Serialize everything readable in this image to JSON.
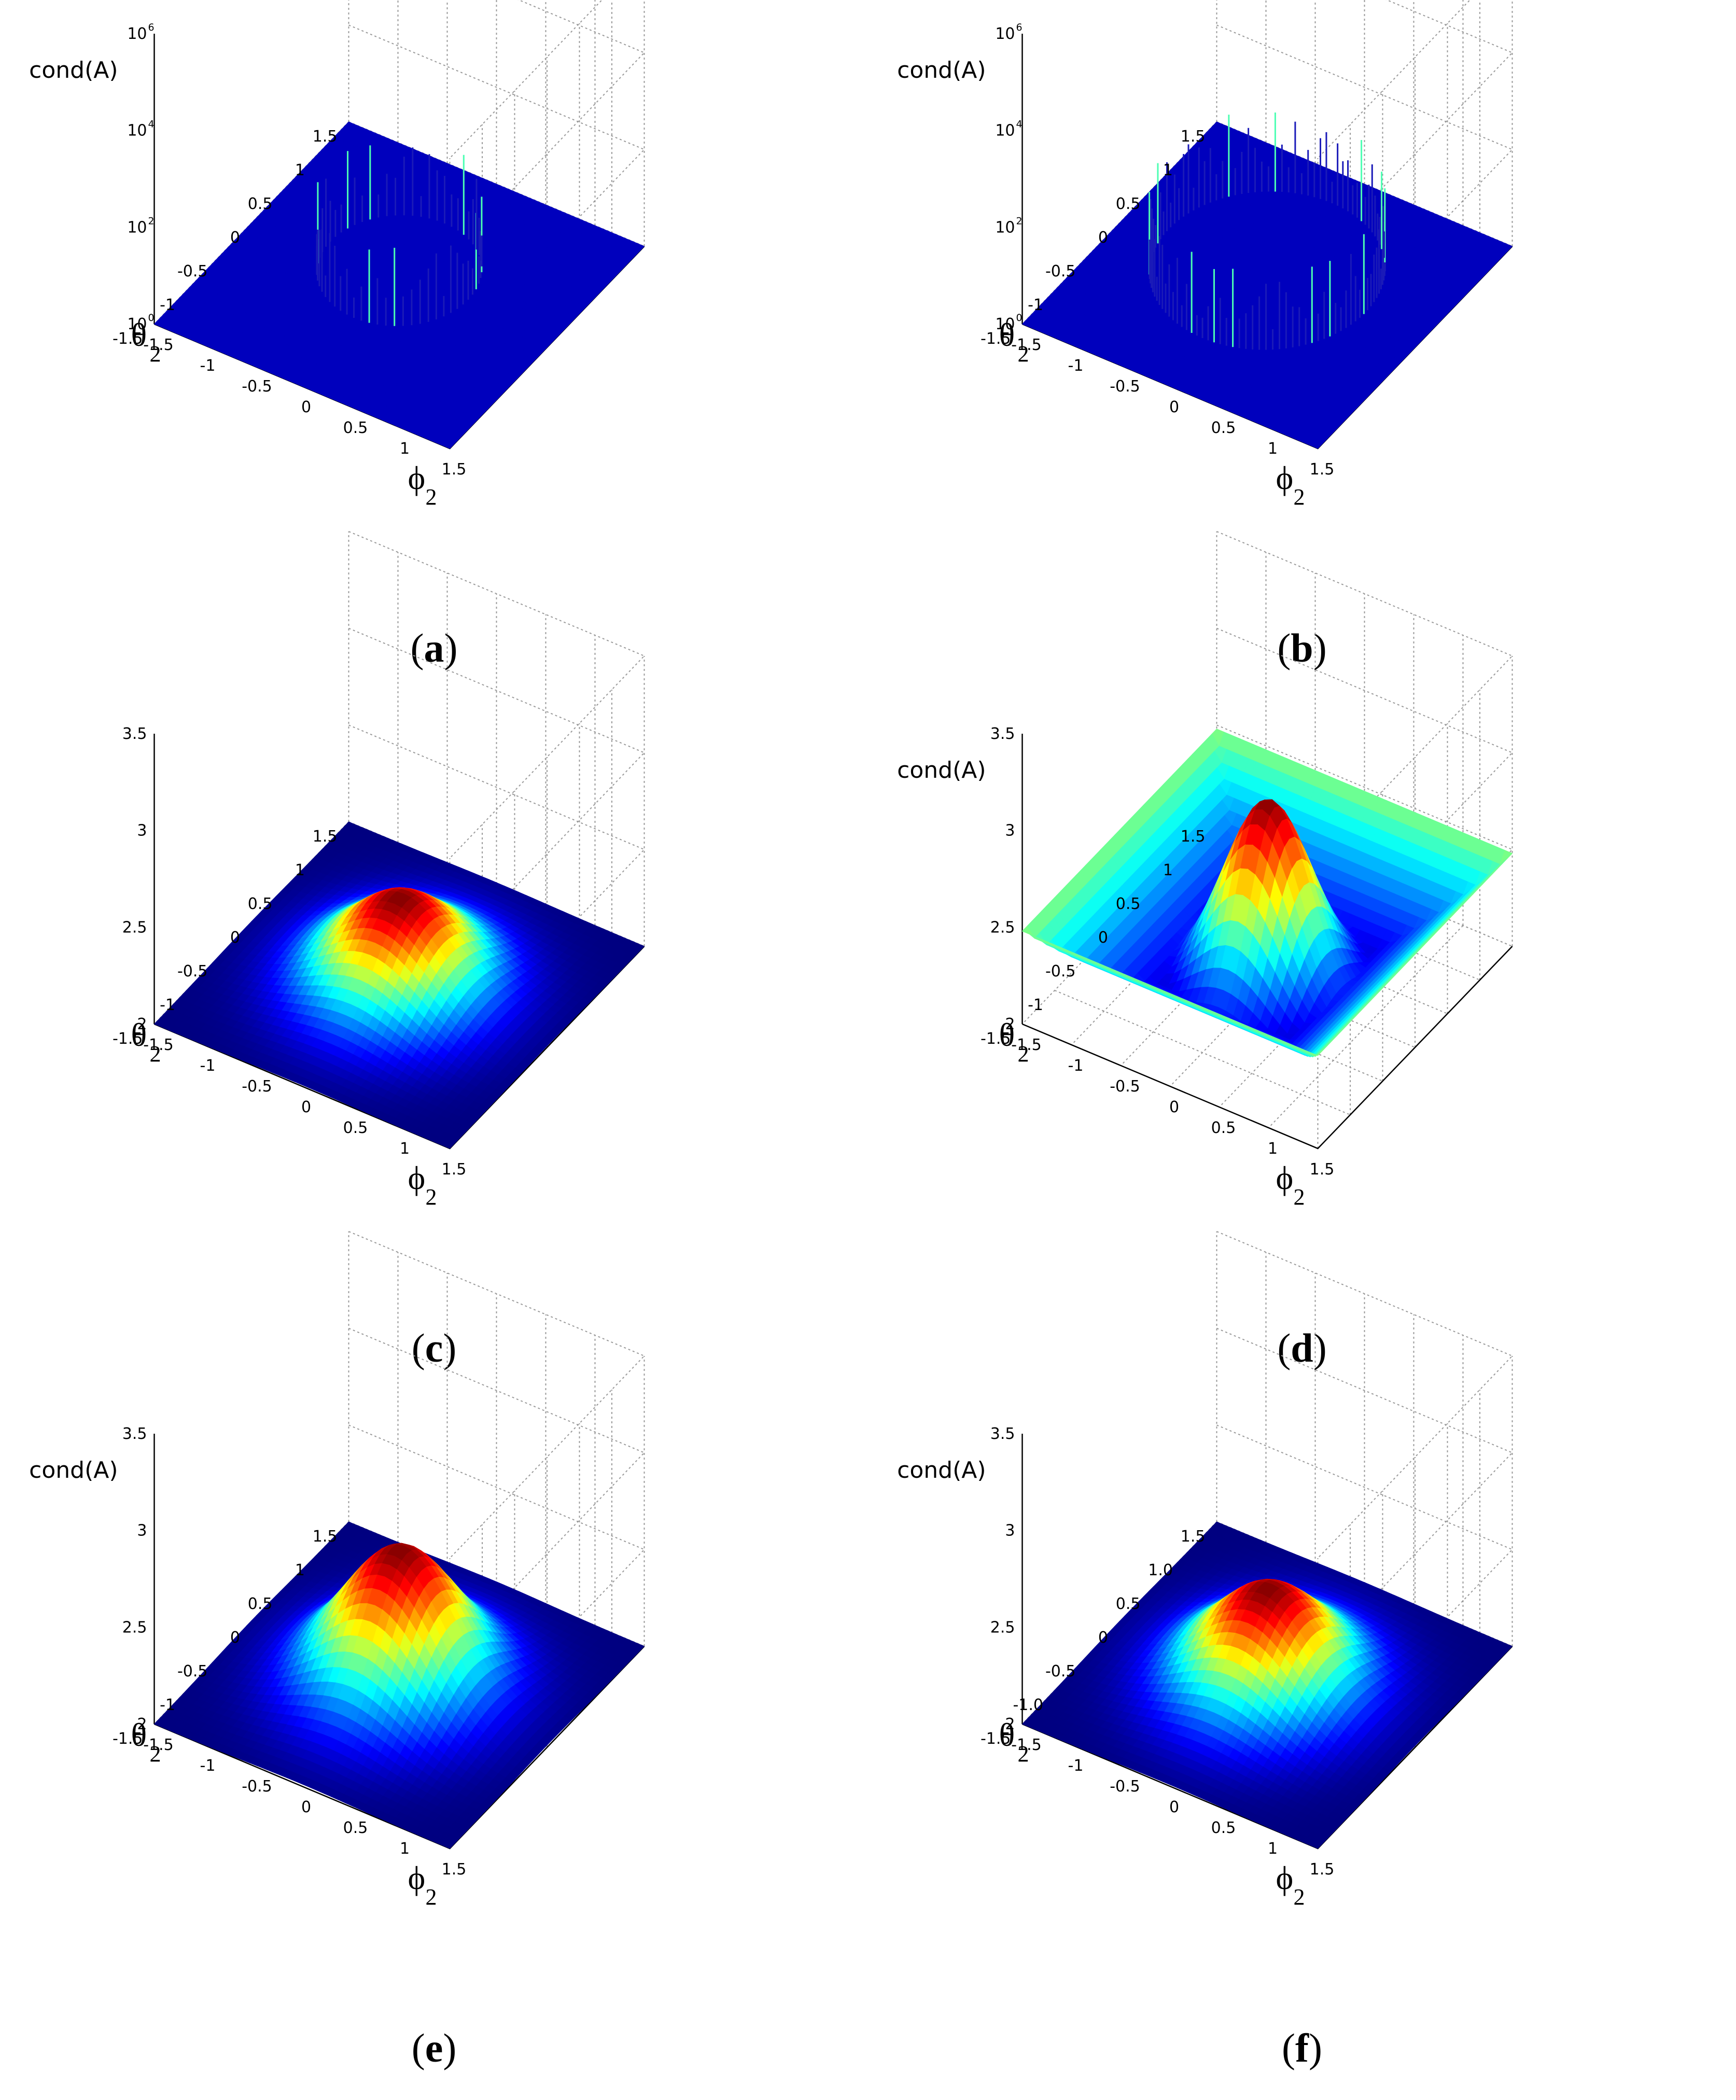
{
  "figure": {
    "panels": [
      {
        "id": "a",
        "caption": "a",
        "zlabel": "cond(A)",
        "xlabel": "θ",
        "xlabel_sub": "2",
        "ylabel": "ϕ",
        "ylabel_sub": "2",
        "zscale": "log",
        "zlim_exp": [
          0,
          6
        ],
        "zticks": [
          "0",
          "2",
          "4",
          "6"
        ],
        "ztick_base": "10",
        "xticks": [
          "-1.5",
          "-1",
          "-0.5",
          "0",
          "0.5",
          "1",
          "1.5"
        ],
        "yticks": [
          "-1.5",
          "-1",
          "-0.5",
          "0",
          "0.5",
          "1",
          "1.5"
        ],
        "surface": "ring"
      },
      {
        "id": "b",
        "caption": "b",
        "zlabel": "cond(A)",
        "xlabel": "θ",
        "xlabel_sub": "2",
        "ylabel": "ϕ",
        "ylabel_sub": "2",
        "zscale": "log",
        "zlim_exp": [
          0,
          6
        ],
        "zticks": [
          "0",
          "2",
          "4",
          "6"
        ],
        "ztick_base": "10",
        "xticks": [
          "-1.5",
          "-1",
          "-0.5",
          "0",
          "0.5",
          "1",
          "1.5"
        ],
        "yticks": [
          "-1.5",
          "-1",
          "-0.5",
          "0",
          "0.5",
          "1",
          "1.5"
        ],
        "surface": "ring-large"
      },
      {
        "id": "c",
        "caption": "c",
        "zlabel": "",
        "xlabel": "θ",
        "xlabel_sub": "2",
        "ylabel": "ϕ",
        "ylabel_sub": "2",
        "zscale": "linear",
        "zlim": [
          2,
          3.5
        ],
        "zticks": [
          "2",
          "2.5",
          "3",
          "3.5"
        ],
        "xticks": [
          "-1.5",
          "-1",
          "-0.5",
          "0",
          "0.5",
          "1",
          "1.5"
        ],
        "yticks": [
          "-1.5",
          "-1",
          "-0.5",
          "0",
          "0.5",
          "1",
          "1.5"
        ],
        "surface": "bump",
        "peak": 2.45
      },
      {
        "id": "d",
        "caption": "d",
        "zlabel": "cond(A)",
        "xlabel": "θ",
        "xlabel_sub": "2",
        "ylabel": "ϕ",
        "ylabel_sub": "2",
        "zscale": "linear",
        "zlim": [
          2,
          3.5
        ],
        "zticks": [
          "2",
          "2.5",
          "3",
          "3.5"
        ],
        "xticks": [
          "-1.5",
          "-1",
          "-0.5",
          "0",
          "0.5",
          "1",
          "1.5"
        ],
        "yticks": [
          "-1.5",
          "-1",
          "-0.5",
          "0",
          "0.5",
          "1",
          "1.5"
        ],
        "surface": "bowl",
        "peak": 2.95,
        "corner": 2.48,
        "min": 2.0
      },
      {
        "id": "e",
        "caption": "e",
        "zlabel": "cond(A)",
        "xlabel": "θ",
        "xlabel_sub": "2",
        "ylabel": "ϕ",
        "ylabel_sub": "2",
        "zscale": "linear",
        "zlim": [
          2,
          3.5
        ],
        "zticks": [
          "2",
          "2.5",
          "3",
          "3.5"
        ],
        "xticks": [
          "-1.5",
          "-1",
          "-0.5",
          "0",
          "0.5",
          "1",
          "1.5"
        ],
        "yticks": [
          "-1.5",
          "-1",
          "-0.5",
          "0",
          "0.5",
          "1",
          "1.5"
        ],
        "surface": "bump",
        "peak": 2.7
      },
      {
        "id": "f",
        "caption": "f",
        "zlabel": "cond(A)",
        "xlabel": "θ",
        "xlabel_sub": "2",
        "ylabel": "ϕ",
        "ylabel_sub": "2",
        "zscale": "linear",
        "zlim": [
          2,
          3.5
        ],
        "zticks": [
          "2",
          "2.5",
          "3",
          "3.5"
        ],
        "xticks": [
          "-1.5",
          "-1.0",
          "-0.5",
          "0",
          "0.5",
          "1.0",
          "1.5"
        ],
        "yticks": [
          "-1.5",
          "-1",
          "-0.5",
          "0",
          "0.5",
          "1",
          "1.5"
        ],
        "surface": "bump",
        "peak": 2.5
      }
    ]
  },
  "chart_data": [
    {
      "type": "surface",
      "panel": "a",
      "zlabel": "cond(A)",
      "xlabel": "θ2",
      "ylabel": "ϕ2",
      "xlim": [
        -1.5,
        1.5
      ],
      "ylim": [
        -1.5,
        1.5
      ],
      "zscale": "log",
      "zlim": [
        1,
        1000000
      ],
      "baseline": 1,
      "feature": "ring of spikes at radius ~0.7, peaks up to ~1e4–1e5",
      "grid": true
    },
    {
      "type": "surface",
      "panel": "b",
      "zlabel": "cond(A)",
      "xlabel": "θ2",
      "ylabel": "ϕ2",
      "xlim": [
        -1.5,
        1.5
      ],
      "ylim": [
        -1.5,
        1.5
      ],
      "zscale": "log",
      "zlim": [
        1,
        1000000
      ],
      "baseline": 1,
      "feature": "ring of spikes at radius ~1.0, peaks up to ~1e6",
      "grid": true
    },
    {
      "type": "surface",
      "panel": "c",
      "zlabel": "",
      "xlabel": "θ2",
      "ylabel": "ϕ2",
      "xlim": [
        -1.5,
        1.5
      ],
      "ylim": [
        -1.5,
        1.5
      ],
      "zlim": [
        2,
        3.5
      ],
      "baseline": 2.0,
      "peak": 2.45,
      "grid": true
    },
    {
      "type": "surface",
      "panel": "d",
      "zlabel": "cond(A)",
      "xlabel": "θ2",
      "ylabel": "ϕ2",
      "xlim": [
        -1.5,
        1.5
      ],
      "ylim": [
        -1.5,
        1.5
      ],
      "zlim": [
        2,
        3.5
      ],
      "peak": 2.95,
      "corner": 2.48,
      "min": 2.0,
      "grid": true
    },
    {
      "type": "surface",
      "panel": "e",
      "zlabel": "cond(A)",
      "xlabel": "θ2",
      "ylabel": "ϕ2",
      "xlim": [
        -1.5,
        1.5
      ],
      "ylim": [
        -1.5,
        1.5
      ],
      "zlim": [
        2,
        3.5
      ],
      "baseline": 2.0,
      "peak": 2.7,
      "grid": true
    },
    {
      "type": "surface",
      "panel": "f",
      "zlabel": "cond(A)",
      "xlabel": "θ2",
      "ylabel": "ϕ2",
      "xlim": [
        -1.5,
        1.5
      ],
      "ylim": [
        -1.5,
        1.5
      ],
      "zlim": [
        2,
        3.5
      ],
      "baseline": 2.0,
      "peak": 2.5,
      "grid": true
    }
  ]
}
